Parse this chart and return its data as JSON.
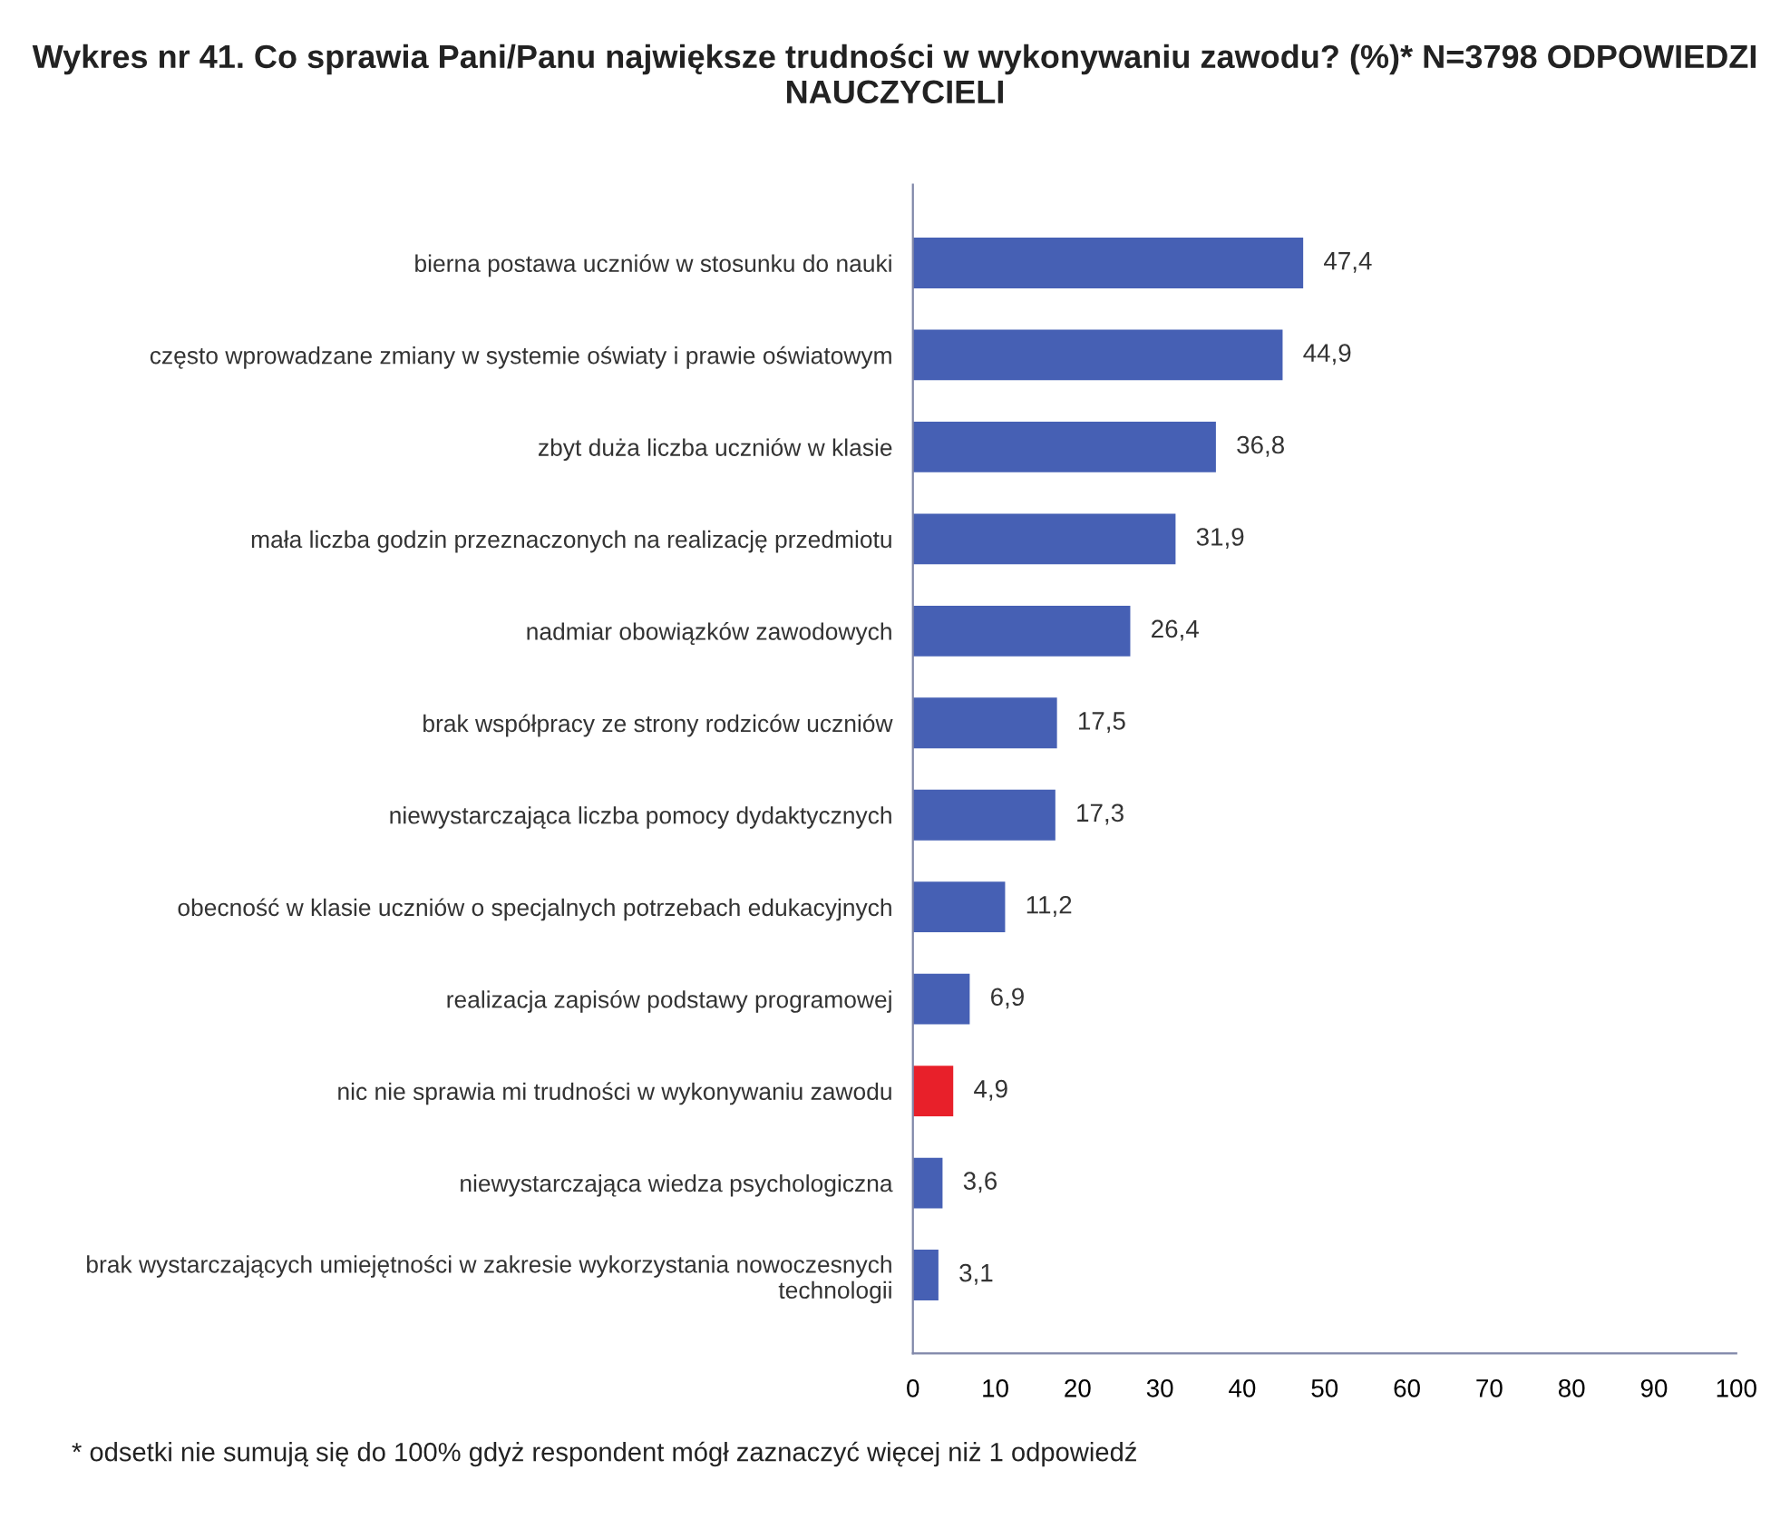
{
  "chart_data": {
    "type": "bar",
    "orientation": "horizontal",
    "title": "Wykres nr 41. Co sprawia Pani/Panu największe trudności w wykonywaniu zawodu? (%)* N=3798 ODPOWIEDZI NAUCZYCIELI",
    "categories": [
      "bierna postawa uczniów w stosunku do nauki",
      "często wprowadzane zmiany w systemie oświaty i prawie oświatowym",
      "zbyt duża liczba uczniów w klasie",
      "mała liczba godzin przeznaczonych na realizację przedmiotu",
      "nadmiar obowiązków zawodowych",
      "brak współpracy ze strony rodziców uczniów",
      "niewystarczająca liczba pomocy dydaktycznych",
      "obecność w klasie uczniów o specjalnych potrzebach edukacyjnych",
      "realizacja zapisów podstawy programowej",
      "nic nie sprawia mi trudności w wykonywaniu zawodu",
      "niewystarczająca wiedza psychologiczna",
      "brak wystarczających umiejętności w zakresie wykorzystania nowoczesnych technologii"
    ],
    "values": [
      47.4,
      44.9,
      36.8,
      31.9,
      26.4,
      17.5,
      17.3,
      11.2,
      6.9,
      4.9,
      3.6,
      3.1
    ],
    "value_labels": [
      "47,4",
      "44,9",
      "36,8",
      "31,9",
      "26,4",
      "17,5",
      "17,3",
      "11,2",
      "6,9",
      "4,9",
      "3,6",
      "3,1"
    ],
    "colors": [
      "#4660b4",
      "#4660b4",
      "#4660b4",
      "#4660b4",
      "#4660b4",
      "#4660b4",
      "#4660b4",
      "#4660b4",
      "#4660b4",
      "#e8202a",
      "#4660b4",
      "#4660b4"
    ],
    "xlim": [
      0,
      100
    ],
    "xticks": [
      0,
      10,
      20,
      30,
      40,
      50,
      60,
      70,
      80,
      90,
      100
    ],
    "grid": false,
    "legend": false,
    "annotations": [
      "* odsetki nie sumują się do 100% gdyż respondent mógł zaznaczyć więcej niż 1 odpowiedź"
    ]
  }
}
